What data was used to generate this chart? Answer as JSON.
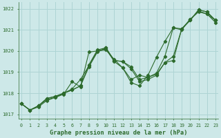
{
  "xlabel": "Graphe pression niveau de la mer (hPa)",
  "bg_color": "#cde8e8",
  "grid_color": "#aed4d4",
  "line_color": "#2d6b2d",
  "markersize": 2.2,
  "linewidth": 0.8,
  "ylim": [
    1016.8,
    1022.3
  ],
  "xlim": [
    -0.3,
    23.3
  ],
  "yticks": [
    1017,
    1018,
    1019,
    1020,
    1021,
    1022
  ],
  "xticks": [
    0,
    1,
    2,
    3,
    4,
    5,
    6,
    7,
    8,
    9,
    10,
    11,
    12,
    13,
    14,
    15,
    16,
    17,
    18,
    19,
    20,
    21,
    22,
    23
  ],
  "series": [
    [
      1017.5,
      1017.2,
      1017.4,
      1017.75,
      1017.85,
      1018.0,
      1018.15,
      1018.35,
      1019.35,
      1020.05,
      1020.15,
      1019.55,
      1019.5,
      1019.25,
      1018.65,
      1018.75,
      1018.9,
      1019.45,
      1019.55,
      1021.05,
      1021.45,
      1021.95,
      1021.85,
      1021.45
    ],
    [
      1017.5,
      1017.2,
      1017.4,
      1017.75,
      1017.85,
      1018.0,
      1018.15,
      1018.35,
      1019.25,
      1019.95,
      1020.15,
      1019.55,
      1019.5,
      1019.15,
      1018.55,
      1018.65,
      1018.85,
      1019.45,
      1019.75,
      1021.05,
      1021.45,
      1021.95,
      1021.85,
      1021.45
    ],
    [
      1017.5,
      1017.2,
      1017.4,
      1017.7,
      1017.8,
      1018.0,
      1018.2,
      1018.65,
      1019.3,
      1020.0,
      1020.05,
      1019.6,
      1019.2,
      1018.5,
      1018.35,
      1018.85,
      1019.7,
      1020.45,
      1021.1,
      1021.0,
      1021.5,
      1021.9,
      1021.75,
      1021.45
    ],
    [
      1017.5,
      1017.2,
      1017.35,
      1017.65,
      1017.8,
      1017.95,
      1018.55,
      1018.3,
      1019.95,
      1020.0,
      1020.1,
      1019.5,
      1019.2,
      1018.65,
      1018.85,
      1018.75,
      1018.95,
      1019.75,
      1021.1,
      1021.05,
      1021.5,
      1021.85,
      1021.75,
      1021.35
    ]
  ]
}
